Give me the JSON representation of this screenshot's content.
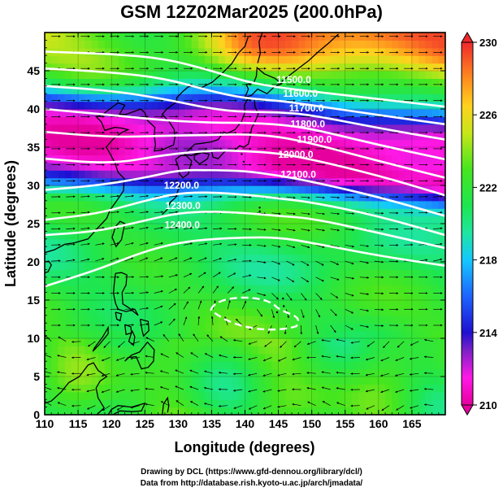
{
  "chart_data": {
    "type": "heatmap",
    "title": "GSM 12Z02Mar2025 (200.0hPa)",
    "xlabel": "Longitude (degrees)",
    "ylabel": "Latitude (degrees)",
    "xlim": [
      110,
      170
    ],
    "ylim": [
      0,
      50
    ],
    "x_ticks": [
      "110",
      "115",
      "120",
      "125",
      "130",
      "135",
      "140",
      "145",
      "150",
      "155",
      "160",
      "165"
    ],
    "y_ticks": [
      "0",
      "5",
      "10",
      "15",
      "20",
      "25",
      "30",
      "35",
      "40",
      "45"
    ],
    "colorbar": {
      "range": [
        210,
        230
      ],
      "tick_labels": [
        "230",
        "226",
        "222",
        "218",
        "214",
        "210"
      ],
      "tick_values": [
        230,
        226,
        222,
        218,
        214,
        210
      ],
      "colors": [
        {
          "value": 210,
          "color": "#e6009e"
        },
        {
          "value": 211.5,
          "color": "#ff19e6"
        },
        {
          "value": 213,
          "color": "#7d21c8"
        },
        {
          "value": 214,
          "color": "#1e10d2"
        },
        {
          "value": 216,
          "color": "#1e64ff"
        },
        {
          "value": 218,
          "color": "#14c8ff"
        },
        {
          "value": 219.5,
          "color": "#1ee6a0"
        },
        {
          "value": 221,
          "color": "#1ee650"
        },
        {
          "value": 223,
          "color": "#46e61e"
        },
        {
          "value": 225,
          "color": "#c8e619"
        },
        {
          "value": 226.5,
          "color": "#ffd21e"
        },
        {
          "value": 228,
          "color": "#ff8c1e"
        },
        {
          "value": 230,
          "color": "#f0282d"
        }
      ]
    },
    "contours": [
      {
        "level": 11500,
        "label": "11500.0",
        "points": [
          [
            110,
            47.5
          ],
          [
            120,
            47.2
          ],
          [
            128,
            46.6
          ],
          [
            135,
            45
          ],
          [
            140,
            43.6
          ],
          [
            145,
            42.8
          ],
          [
            150,
            42.3
          ],
          [
            160,
            41.3
          ],
          [
            170,
            40.3
          ]
        ]
      },
      {
        "level": 11600,
        "label": "11600.0",
        "points": [
          [
            110,
            45.3
          ],
          [
            120,
            44.8
          ],
          [
            128,
            44
          ],
          [
            135,
            42.3
          ],
          [
            140,
            41.4
          ],
          [
            145,
            41.1
          ],
          [
            150,
            40.5
          ],
          [
            160,
            39.2
          ],
          [
            170,
            38
          ]
        ]
      },
      {
        "level": 11700,
        "label": "11700.0",
        "points": [
          [
            110,
            43
          ],
          [
            120,
            42.4
          ],
          [
            128,
            41.3
          ],
          [
            135,
            40
          ],
          [
            140,
            39.6
          ],
          [
            145,
            39.6
          ],
          [
            150,
            39.2
          ],
          [
            160,
            37.5
          ],
          [
            170,
            36
          ]
        ]
      },
      {
        "level": 11800,
        "label": "11800.0",
        "points": [
          [
            110,
            40
          ],
          [
            120,
            39.2
          ],
          [
            128,
            38.5
          ],
          [
            135,
            38.2
          ],
          [
            140,
            38.2
          ],
          [
            145,
            38
          ],
          [
            150,
            37.4
          ],
          [
            160,
            35.3
          ],
          [
            170,
            33.4
          ]
        ]
      },
      {
        "level": 11900,
        "label": "11900.0",
        "points": [
          [
            110,
            37
          ],
          [
            120,
            36.3
          ],
          [
            128,
            36.5
          ],
          [
            135,
            36.6
          ],
          [
            140,
            36.7
          ],
          [
            145,
            36.4
          ],
          [
            150,
            35.5
          ],
          [
            160,
            33.2
          ],
          [
            170,
            31
          ]
        ]
      },
      {
        "level": 12000,
        "label": "12000.0",
        "points": [
          [
            110,
            33.5
          ],
          [
            120,
            32.8
          ],
          [
            128,
            34
          ],
          [
            135,
            34.6
          ],
          [
            140,
            34.5
          ],
          [
            145,
            34.2
          ],
          [
            150,
            33.4
          ],
          [
            160,
            31.3
          ],
          [
            170,
            28.7
          ]
        ]
      },
      {
        "level": 12100,
        "label": "12100.0",
        "points": [
          [
            110,
            29.4
          ],
          [
            118,
            30
          ],
          [
            125,
            31
          ],
          [
            130,
            32
          ],
          [
            135,
            32
          ],
          [
            140,
            31.9
          ],
          [
            145,
            31.3
          ],
          [
            150,
            30.5
          ],
          [
            160,
            28.5
          ],
          [
            170,
            26
          ]
        ]
      },
      {
        "level": 12200,
        "label": "12200.0",
        "points": [
          [
            110,
            25.5
          ],
          [
            118,
            26.3
          ],
          [
            125,
            28
          ],
          [
            130,
            29
          ],
          [
            135,
            29.1
          ],
          [
            140,
            28.8
          ],
          [
            145,
            28.3
          ],
          [
            150,
            27.8
          ],
          [
            160,
            26
          ],
          [
            170,
            23.5
          ]
        ]
      },
      {
        "level": 12300,
        "label": "12300.0",
        "points": [
          [
            110,
            23.5
          ],
          [
            118,
            24
          ],
          [
            125,
            25.4
          ],
          [
            130,
            26.4
          ],
          [
            135,
            26.6
          ],
          [
            140,
            26.4
          ],
          [
            145,
            26
          ],
          [
            150,
            25.7
          ],
          [
            160,
            23.8
          ],
          [
            170,
            21.8
          ]
        ]
      },
      {
        "level": 12400,
        "label": "12400.0",
        "points": [
          [
            110,
            16.8
          ],
          [
            118,
            19
          ],
          [
            125,
            21.4
          ],
          [
            130,
            22.5
          ],
          [
            135,
            23
          ],
          [
            140,
            23.2
          ],
          [
            145,
            23.2
          ],
          [
            150,
            22.5
          ],
          [
            160,
            20.8
          ],
          [
            170,
            19.5
          ]
        ]
      }
    ],
    "contour_labels": [
      {
        "text": "11500.0",
        "lon": 147.3,
        "lat": 43.4
      },
      {
        "text": "11600.0",
        "lon": 148.3,
        "lat": 41.6
      },
      {
        "text": "11700.0",
        "lon": 149.2,
        "lat": 39.7
      },
      {
        "text": "11800.0",
        "lon": 149.4,
        "lat": 37.6
      },
      {
        "text": "11900.0",
        "lon": 150.4,
        "lat": 35.6
      },
      {
        "text": "12000.0",
        "lon": 147.6,
        "lat": 33.6
      },
      {
        "text": "12100.0",
        "lon": 148.0,
        "lat": 31.0
      },
      {
        "text": "12200.0",
        "lon": 130.5,
        "lat": 29.6
      },
      {
        "text": "12300.0",
        "lon": 130.7,
        "lat": 26.9
      },
      {
        "text": "12400.0",
        "lon": 130.6,
        "lat": 24.4
      }
    ],
    "high_center": {
      "lon": 141,
      "lat": 13.5
    },
    "colors": {
      "contour": "#ffffff",
      "coast": "#000000",
      "grid": "#000000",
      "arrow": "#000000"
    }
  },
  "credits": {
    "line1": "Drawing by DCL (https://www.gfd-dennou.org/library/dcl/)",
    "line2": "Data from http://database.rish.kyoto-u.ac.jp/arch/jmadata/"
  }
}
